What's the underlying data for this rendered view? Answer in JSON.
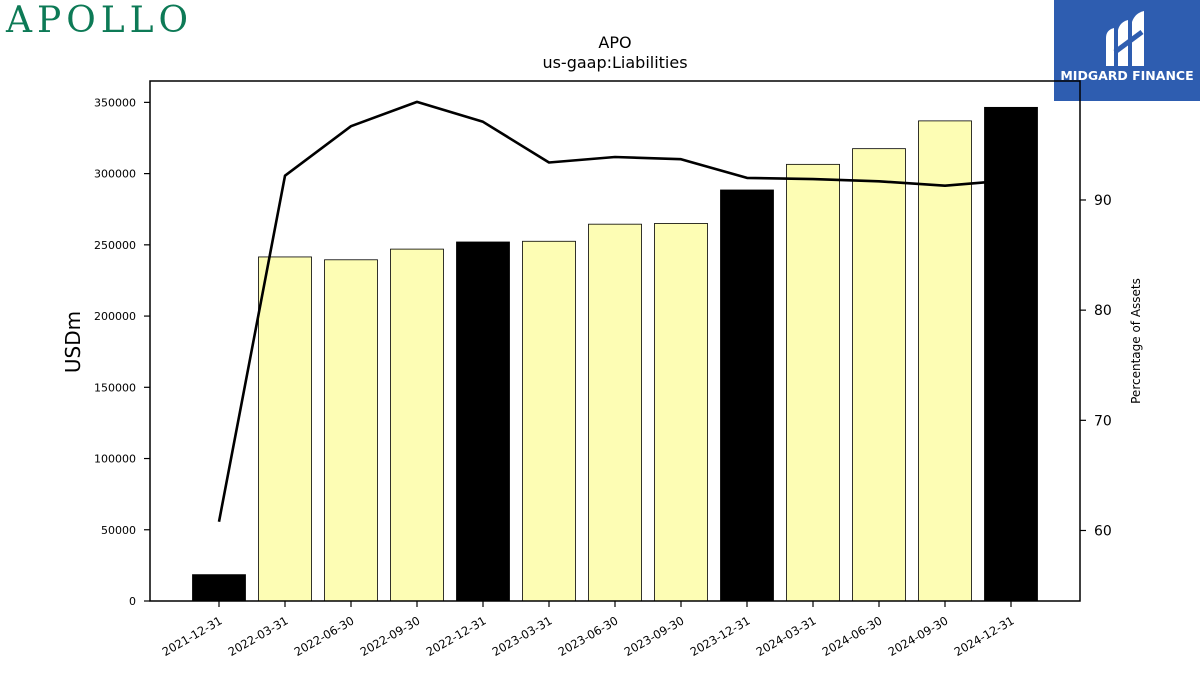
{
  "logos": {
    "left_brand": "APOLLO",
    "right_brand": "MIDGARD FINANCE",
    "left_color": "#0d7a56",
    "right_bg": "#2e5db0"
  },
  "chart_data": {
    "type": "bar",
    "title": "APO",
    "subtitle": "us-gaap:Liabilities",
    "ylabel": "USDm",
    "y2label": "Percentage of Assets",
    "categories": [
      "2021-12-31",
      "2022-03-31",
      "2022-06-30",
      "2022-09-30",
      "2022-12-31",
      "2023-03-31",
      "2023-06-30",
      "2023-09-30",
      "2023-12-31",
      "2024-03-31",
      "2024-06-30",
      "2024-09-30",
      "2024-12-31"
    ],
    "values": [
      18500,
      241500,
      239500,
      247000,
      252000,
      252500,
      264500,
      265000,
      288500,
      306500,
      317500,
      337000,
      346500
    ],
    "bar_highlight": [
      true,
      false,
      false,
      false,
      true,
      false,
      false,
      false,
      true,
      false,
      false,
      false,
      true
    ],
    "line_series": {
      "name": "Percentage of Assets",
      "values": [
        60.8,
        92.2,
        96.7,
        98.9,
        97.1,
        93.4,
        93.9,
        93.7,
        92.0,
        91.9,
        91.7,
        91.3,
        91.8
      ]
    },
    "ylim": [
      0,
      365000
    ],
    "yticks": [
      0,
      50000,
      100000,
      150000,
      200000,
      250000,
      300000,
      350000
    ],
    "y2lim": [
      53.6,
      100.8
    ],
    "y2ticks": [
      60,
      70,
      80,
      90
    ],
    "grid": false,
    "colors": {
      "highlight_bar": "#000000",
      "bar": "#fdfdb4",
      "line": "#000000"
    }
  }
}
